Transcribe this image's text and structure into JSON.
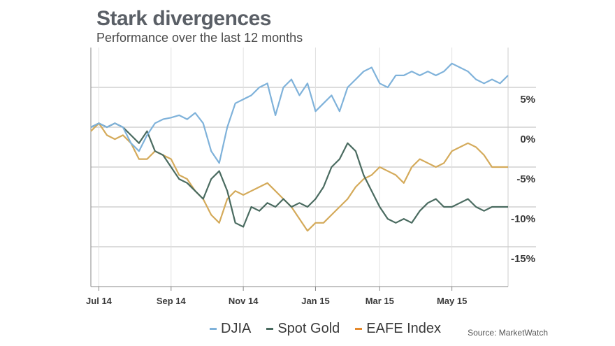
{
  "chart_data": {
    "type": "line",
    "title": "Stark divergences",
    "subtitle": "Performance over the last 12 months",
    "source": "Source: MarketWatch",
    "yticks": [
      "5%",
      "0%",
      "-5%",
      "-10%",
      "-15%"
    ],
    "ytick_values": [
      5,
      0,
      -5,
      -10,
      -15
    ],
    "ylim": [
      -20,
      10
    ],
    "xlim": [
      0,
      52
    ],
    "xticks": [
      "Jul 14",
      "Sep 14",
      "Nov 14",
      "Jan 15",
      "Mar 15",
      "May 15"
    ],
    "xtick_values": [
      1,
      10,
      19,
      28,
      36,
      45
    ],
    "grid": "horizontal",
    "legend_position": "bottom",
    "series": [
      {
        "name": "DJIA",
        "color": "#7fb2da",
        "x": [
          0,
          1,
          2,
          3,
          4,
          5,
          6,
          7,
          8,
          9,
          10,
          11,
          12,
          13,
          14,
          15,
          16,
          17,
          18,
          19,
          20,
          21,
          22,
          23,
          24,
          25,
          26,
          27,
          28,
          29,
          30,
          31,
          32,
          33,
          34,
          35,
          36,
          37,
          38,
          39,
          40,
          41,
          42,
          43,
          44,
          45,
          46,
          47,
          48,
          49,
          50,
          51,
          52
        ],
        "values": [
          0,
          0.5,
          0,
          0.5,
          0,
          -2,
          -3,
          -1,
          0.5,
          1,
          1.2,
          1.5,
          1,
          1.8,
          0.5,
          -3,
          -4.5,
          0,
          3,
          3.5,
          4,
          5,
          5.5,
          1.5,
          5,
          6,
          4,
          5.5,
          2,
          3,
          4,
          2,
          5,
          6,
          7,
          7.5,
          5.5,
          5,
          6.5,
          6.5,
          7,
          6.5,
          7,
          6.5,
          7,
          8,
          7.5,
          7,
          6,
          5.5,
          6,
          5.5,
          6.5
        ]
      },
      {
        "name": "Spot Gold",
        "color": "#4a6b60",
        "x": [
          0,
          1,
          2,
          3,
          4,
          5,
          6,
          7,
          8,
          9,
          10,
          11,
          12,
          13,
          14,
          15,
          16,
          17,
          18,
          19,
          20,
          21,
          22,
          23,
          24,
          25,
          26,
          27,
          28,
          29,
          30,
          31,
          32,
          33,
          34,
          35,
          36,
          37,
          38,
          39,
          40,
          41,
          42,
          43,
          44,
          45,
          46,
          47,
          48,
          49,
          50,
          51,
          52
        ],
        "values": [
          0,
          0.5,
          0,
          0.5,
          0,
          -1,
          -2,
          -0.5,
          -3,
          -3.5,
          -5,
          -6.5,
          -7,
          -8,
          -9,
          -6.5,
          -5.5,
          -8,
          -12,
          -12.5,
          -10,
          -10.5,
          -9.5,
          -10,
          -9,
          -10,
          -9.5,
          -10,
          -9,
          -7.5,
          -5,
          -4,
          -2,
          -3,
          -6,
          -8,
          -10,
          -11.5,
          -12,
          -11.5,
          -12,
          -10.5,
          -9.5,
          -9,
          -10,
          -10,
          -9.5,
          -9,
          -10,
          -10.5,
          -10,
          -10,
          -10
        ]
      },
      {
        "name": "EAFE Index",
        "color": "#d4aa5a",
        "x": [
          0,
          1,
          2,
          3,
          4,
          5,
          6,
          7,
          8,
          9,
          10,
          11,
          12,
          13,
          14,
          15,
          16,
          17,
          18,
          19,
          20,
          21,
          22,
          23,
          24,
          25,
          26,
          27,
          28,
          29,
          30,
          31,
          32,
          33,
          34,
          35,
          36,
          37,
          38,
          39,
          40,
          41,
          42,
          43,
          44,
          45,
          46,
          47,
          48,
          49,
          50,
          51,
          52
        ],
        "values": [
          -0.5,
          0.5,
          -1,
          -1.5,
          -1,
          -2,
          -4,
          -4,
          -3,
          -3.5,
          -4,
          -6,
          -6.5,
          -8,
          -9,
          -11,
          -12,
          -9,
          -8,
          -8.5,
          -8,
          -7.5,
          -7,
          -8,
          -9,
          -10,
          -11.5,
          -13,
          -12,
          -12,
          -11,
          -10,
          -9,
          -7.5,
          -6.5,
          -6,
          -5,
          -5.5,
          -6,
          -7,
          -5,
          -4,
          -4.5,
          -5,
          -4.5,
          -3,
          -2.5,
          -2,
          -2.5,
          -3.5,
          -5,
          -5,
          -5
        ]
      }
    ]
  }
}
